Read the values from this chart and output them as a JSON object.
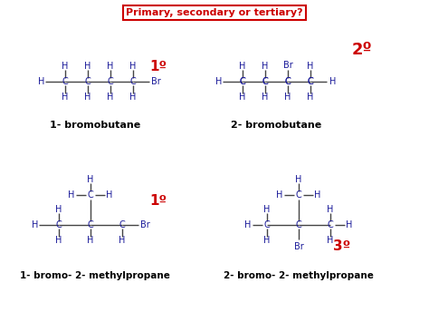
{
  "title": "Primary, secondary or tertiary?",
  "title_color": "#cc0000",
  "atom_color": "#1a1a99",
  "line_color": "#444444",
  "bg_color": "#ffffff",
  "degree_color": "#cc0000",
  "labels": {
    "mol1": "1- bromobutane",
    "mol2": "2- bromobutane",
    "mol3": "1- bromo- 2- methylpropane",
    "mol4": "2- bromo- 2- methylpropane"
  },
  "degrees": {
    "mol1": "1º",
    "mol2": "2º",
    "mol3": "1º",
    "mol4": "3º"
  }
}
